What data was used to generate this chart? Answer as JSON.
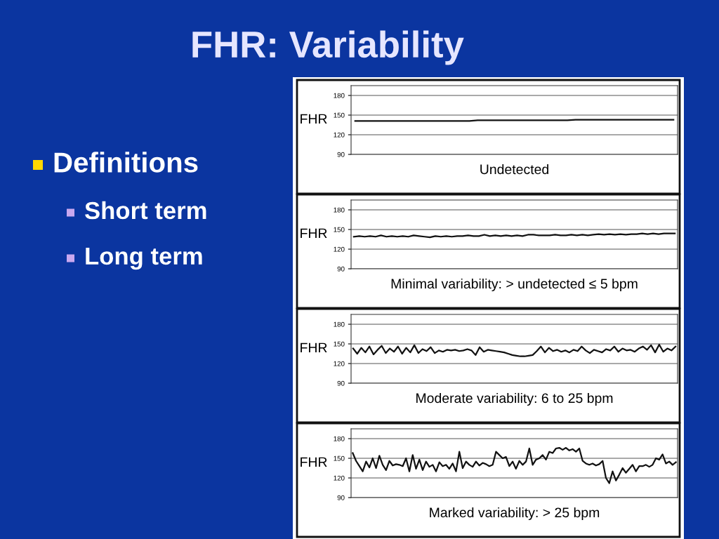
{
  "chart_data": [
    {
      "type": "other",
      "title": "FHR: Variability",
      "annotations": [
        "Definitions",
        "Short term",
        "Long term"
      ]
    },
    {
      "type": "line",
      "ylabel": "FHR",
      "xlabel": "Undetected",
      "ylim": [
        90,
        195
      ],
      "yticks": [
        90,
        120,
        150,
        180
      ],
      "grid": true,
      "color": "#111111",
      "categories": [
        null,
        null,
        null,
        null,
        null,
        null,
        null,
        null,
        null,
        null,
        null,
        null,
        null,
        null,
        null,
        null,
        null,
        null,
        null,
        null,
        null,
        null,
        null,
        null,
        null,
        null,
        null,
        null,
        null,
        null,
        null,
        null,
        null,
        null,
        null,
        null,
        null,
        null,
        null,
        null
      ],
      "values": [
        141,
        141,
        141,
        141,
        141,
        141,
        141,
        141,
        141,
        141,
        141,
        141,
        141,
        141,
        141,
        142,
        142,
        142,
        142,
        142,
        142,
        142,
        142,
        142,
        142,
        142,
        142,
        143,
        143,
        143,
        143,
        143,
        143,
        143,
        143,
        143,
        143,
        143,
        143,
        143
      ]
    },
    {
      "type": "line",
      "ylabel": "FHR",
      "xlabel": "Minimal variability: > undetected ≤ 5 bpm",
      "ylim": [
        90,
        195
      ],
      "yticks": [
        90,
        120,
        150,
        180
      ],
      "grid": true,
      "color": "#111111",
      "categories": [
        null,
        null,
        null,
        null,
        null,
        null,
        null,
        null,
        null,
        null,
        null,
        null,
        null,
        null,
        null,
        null,
        null,
        null,
        null,
        null,
        null,
        null,
        null,
        null,
        null,
        null,
        null,
        null,
        null,
        null,
        null,
        null,
        null,
        null,
        null,
        null,
        null,
        null,
        null,
        null,
        null,
        null,
        null,
        null,
        null,
        null,
        null,
        null,
        null,
        null,
        null,
        null,
        null,
        null,
        null,
        null,
        null,
        null,
        null,
        null
      ],
      "values": [
        139,
        140,
        139,
        140,
        139,
        141,
        139,
        140,
        139,
        140,
        139,
        141,
        140,
        139,
        138,
        140,
        139,
        140,
        139,
        140,
        140,
        141,
        140,
        140,
        142,
        140,
        141,
        140,
        141,
        140,
        141,
        140,
        142,
        142,
        141,
        141,
        141,
        142,
        141,
        141,
        142,
        141,
        142,
        141,
        142,
        143,
        142,
        143,
        142,
        143,
        142,
        143,
        143,
        144,
        143,
        144,
        143,
        144,
        144,
        144
      ]
    },
    {
      "type": "line",
      "ylabel": "FHR",
      "xlabel": "Moderate variability: 6 to 25 bpm",
      "ylim": [
        90,
        195
      ],
      "yticks": [
        90,
        120,
        150,
        180
      ],
      "grid": true,
      "color": "#111111",
      "categories": [
        null,
        null,
        null,
        null,
        null,
        null,
        null,
        null,
        null,
        null,
        null,
        null,
        null,
        null,
        null,
        null,
        null,
        null,
        null,
        null,
        null,
        null,
        null,
        null,
        null,
        null,
        null,
        null,
        null,
        null,
        null,
        null,
        null,
        null,
        null,
        null,
        null,
        null,
        null,
        null,
        null,
        null,
        null,
        null,
        null,
        null,
        null,
        null,
        null,
        null,
        null,
        null,
        null,
        null,
        null,
        null,
        null,
        null,
        null,
        null,
        null,
        null,
        null,
        null,
        null,
        null,
        null,
        null,
        null,
        null,
        null,
        null,
        null,
        null,
        null,
        null,
        null,
        null,
        null,
        null
      ],
      "values": [
        143,
        135,
        144,
        137,
        146,
        134,
        141,
        147,
        136,
        143,
        138,
        146,
        135,
        144,
        137,
        148,
        136,
        142,
        139,
        145,
        136,
        140,
        138,
        141,
        140,
        141,
        139,
        140,
        142,
        140,
        133,
        145,
        138,
        141,
        140,
        139,
        138,
        137,
        135,
        133,
        132,
        131,
        131,
        132,
        133,
        139,
        146,
        137,
        144,
        139,
        141,
        138,
        140,
        137,
        141,
        139,
        146,
        140,
        136,
        141,
        139,
        137,
        142,
        140,
        146,
        138,
        143,
        140,
        141,
        138,
        143,
        146,
        141,
        148,
        137,
        149,
        138,
        143,
        140,
        146
      ]
    },
    {
      "type": "line",
      "ylabel": "FHR",
      "xlabel": "Marked variability: > 25 bpm",
      "ylim": [
        90,
        195
      ],
      "yticks": [
        90,
        120,
        150,
        180
      ],
      "grid": true,
      "color": "#111111",
      "categories": [
        null,
        null,
        null,
        null,
        null,
        null,
        null,
        null,
        null,
        null,
        null,
        null,
        null,
        null,
        null,
        null,
        null,
        null,
        null,
        null,
        null,
        null,
        null,
        null,
        null,
        null,
        null,
        null,
        null,
        null,
        null,
        null,
        null,
        null,
        null,
        null,
        null,
        null,
        null,
        null,
        null,
        null,
        null,
        null,
        null,
        null,
        null,
        null,
        null,
        null,
        null,
        null,
        null,
        null,
        null,
        null,
        null,
        null,
        null,
        null,
        null,
        null,
        null,
        null,
        null,
        null,
        null,
        null,
        null,
        null,
        null,
        null,
        null,
        null,
        null,
        null,
        null,
        null,
        null,
        null,
        null,
        null,
        null,
        null,
        null,
        null,
        null,
        null,
        null,
        null,
        null,
        null,
        null,
        null,
        null,
        null,
        null,
        null
      ],
      "values": [
        158,
        146,
        138,
        130,
        145,
        136,
        150,
        135,
        154,
        140,
        132,
        146,
        139,
        141,
        140,
        138,
        150,
        130,
        155,
        134,
        148,
        132,
        145,
        137,
        140,
        130,
        144,
        138,
        140,
        134,
        142,
        130,
        160,
        135,
        145,
        140,
        137,
        145,
        139,
        143,
        141,
        138,
        140,
        160,
        155,
        150,
        152,
        138,
        145,
        134,
        146,
        140,
        145,
        165,
        140,
        148,
        150,
        155,
        148,
        160,
        158,
        165,
        166,
        163,
        166,
        162,
        164,
        160,
        165,
        146,
        142,
        140,
        142,
        139,
        141,
        146,
        120,
        112,
        130,
        116,
        125,
        135,
        128,
        134,
        140,
        130,
        138,
        138,
        140,
        137,
        140,
        150,
        148,
        156,
        142,
        145,
        140,
        144
      ]
    }
  ]
}
